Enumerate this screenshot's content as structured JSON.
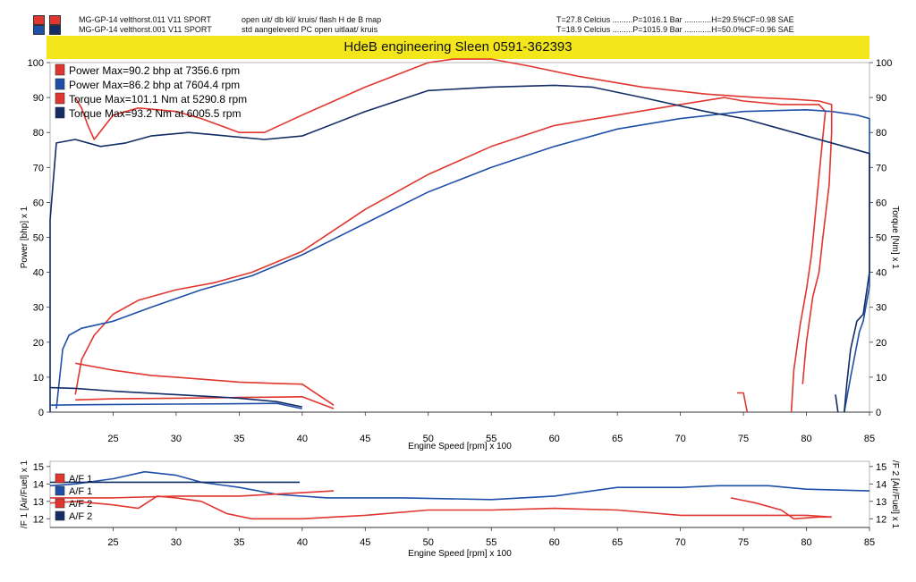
{
  "header": {
    "runs": [
      {
        "name": "MG-GP-14 velthorst.011 V11 SPORT",
        "desc": "open uit/ db kil/ kruis/ flash H de B map",
        "conditions": "T=27.8 Celcius .........P=1016.1 Bar ............H=29.5%CF=0.98 SAE",
        "color": "#d9302b"
      },
      {
        "name": "MG-GP-14 velthorst.001 V11 SPORT",
        "desc": "std aangeleverd PC open uitlaat/ kruis",
        "conditions": "T=18.9 Celcius .........P=1015.9 Bar ............H=50.0%CF=0.96 SAE",
        "color": "#2a5cb0"
      }
    ],
    "banner": "HdeB engineering Sleen 0591-362393"
  },
  "chart_data": [
    {
      "type": "line",
      "xlabel": "Engine Speed [rpm] x 100",
      "ylabel_left": "Power [bhp] x 1",
      "ylabel_right": "Torque [Nm] x 1",
      "xlim": [
        20,
        85
      ],
      "ylim": [
        0,
        100
      ],
      "xticks": [
        25,
        30,
        35,
        40,
        45,
        50,
        55,
        60,
        65,
        70,
        75,
        80,
        85
      ],
      "yticks": [
        0,
        10,
        20,
        30,
        40,
        50,
        60,
        70,
        80,
        90,
        100
      ],
      "legend": [
        {
          "label": "Power  Max=90.2 bhp at 7356.6 rpm",
          "color": "#e0362f"
        },
        {
          "label": "Power  Max=86.2 bhp at 7604.4 rpm",
          "color": "#1e50a8"
        },
        {
          "label": "Torque  Max=101.1 Nm at 5290.8 rpm",
          "color": "#e0362f"
        },
        {
          "label": "Torque  Max=93.2 Nm at 6005.5 rpm",
          "color": "#122c66"
        }
      ],
      "series": [
        {
          "color": "#e0362f",
          "points": [
            [
              22,
              5
            ],
            [
              22.5,
              15
            ],
            [
              23.5,
              22
            ],
            [
              25,
              28
            ],
            [
              27,
              32
            ],
            [
              30,
              35
            ],
            [
              33,
              37
            ],
            [
              36,
              40
            ],
            [
              40,
              46
            ],
            [
              45,
              58
            ],
            [
              50,
              68
            ],
            [
              55,
              76
            ],
            [
              60,
              82
            ],
            [
              65,
              85
            ],
            [
              70,
              88
            ],
            [
              73.5,
              90
            ],
            [
              75,
              89
            ],
            [
              78,
              88
            ],
            [
              80,
              88
            ],
            [
              81,
              88
            ],
            [
              81.5,
              86
            ],
            [
              81.2,
              75
            ],
            [
              80.8,
              60
            ],
            [
              80.4,
              45
            ],
            [
              80,
              35
            ],
            [
              79.5,
              25
            ],
            [
              79,
              12
            ],
            [
              78.8,
              0
            ]
          ]
        },
        {
          "color": "#1e50a8",
          "points": [
            [
              20.5,
              1
            ],
            [
              21,
              18
            ],
            [
              21.5,
              22
            ],
            [
              22.5,
              24
            ],
            [
              25,
              26
            ],
            [
              28,
              30
            ],
            [
              32,
              35
            ],
            [
              36,
              39
            ],
            [
              40,
              45
            ],
            [
              45,
              54
            ],
            [
              50,
              63
            ],
            [
              55,
              70
            ],
            [
              60,
              76
            ],
            [
              65,
              81
            ],
            [
              70,
              84
            ],
            [
              75,
              86
            ],
            [
              80,
              86.5
            ],
            [
              82,
              86
            ],
            [
              84,
              85
            ],
            [
              85,
              84
            ],
            [
              85,
              60
            ],
            [
              85,
              36
            ],
            [
              84.7,
              30
            ],
            [
              84.5,
              26
            ],
            [
              84.2,
              23
            ],
            [
              83.5,
              10
            ],
            [
              83,
              0
            ]
          ]
        },
        {
          "color": "#e0362f",
          "points": [
            [
              22,
              90
            ],
            [
              22.5,
              87
            ],
            [
              23,
              82
            ],
            [
              23.5,
              78
            ],
            [
              25,
              85
            ],
            [
              27,
              87
            ],
            [
              30,
              86
            ],
            [
              32,
              84
            ],
            [
              35,
              80
            ],
            [
              37,
              80
            ],
            [
              40,
              85
            ],
            [
              45,
              93
            ],
            [
              50,
              100
            ],
            [
              52,
              101
            ],
            [
              55,
              101
            ],
            [
              58,
              99
            ],
            [
              62,
              96
            ],
            [
              67,
              93
            ],
            [
              72,
              91
            ],
            [
              76,
              90
            ],
            [
              79,
              89.5
            ],
            [
              81,
              89
            ],
            [
              82,
              88
            ],
            [
              82,
              80
            ],
            [
              81.8,
              65
            ],
            [
              81.3,
              50
            ],
            [
              81,
              40
            ],
            [
              80.5,
              33
            ],
            [
              80,
              20
            ],
            [
              79.7,
              8
            ]
          ]
        },
        {
          "color": "#122c66",
          "points": [
            [
              20,
              0
            ],
            [
              20,
              55
            ],
            [
              20.5,
              77
            ],
            [
              22,
              78
            ],
            [
              24,
              76
            ],
            [
              26,
              77
            ],
            [
              28,
              79
            ],
            [
              31,
              80
            ],
            [
              34,
              79
            ],
            [
              37,
              78
            ],
            [
              40,
              79
            ],
            [
              45,
              86
            ],
            [
              50,
              92
            ],
            [
              55,
              93
            ],
            [
              60,
              93.5
            ],
            [
              63,
              93
            ],
            [
              67,
              90
            ],
            [
              72,
              86
            ],
            [
              75,
              84
            ],
            [
              78,
              81
            ],
            [
              80,
              79
            ],
            [
              83,
              76
            ],
            [
              85,
              74
            ],
            [
              85,
              55
            ],
            [
              85,
              40
            ],
            [
              84.5,
              28
            ],
            [
              84,
              26
            ],
            [
              83.5,
              18
            ],
            [
              83.2,
              8
            ],
            [
              83,
              0
            ]
          ]
        },
        {
          "color": "#e0362f",
          "points": [
            [
              22,
              3.5
            ],
            [
              25,
              3.8
            ],
            [
              30,
              4
            ],
            [
              35,
              4.2
            ],
            [
              38,
              4.3
            ],
            [
              40,
              4.4
            ],
            [
              42.5,
              1
            ]
          ]
        },
        {
          "color": "#e0362f",
          "points": [
            [
              22,
              14
            ],
            [
              25,
              12
            ],
            [
              28,
              10.5
            ],
            [
              30,
              10
            ],
            [
              35,
              8.6
            ],
            [
              38,
              8.2
            ],
            [
              40,
              8
            ],
            [
              42.5,
              2
            ]
          ]
        },
        {
          "color": "#1e50a8",
          "points": [
            [
              20,
              2
            ],
            [
              22,
              2.1
            ],
            [
              25,
              2.2
            ],
            [
              30,
              2.3
            ],
            [
              35,
              2.4
            ],
            [
              38,
              2.5
            ],
            [
              40,
              1
            ]
          ]
        },
        {
          "color": "#122c66",
          "points": [
            [
              20,
              7
            ],
            [
              22,
              6.8
            ],
            [
              25,
              6
            ],
            [
              30,
              5
            ],
            [
              35,
              4
            ],
            [
              38,
              3
            ],
            [
              40,
              1.5
            ]
          ]
        },
        {
          "color": "#e0362f",
          "points": [
            [
              74.5,
              5.5
            ],
            [
              75,
              5.5
            ],
            [
              75.3,
              0
            ]
          ]
        },
        {
          "color": "#122c66",
          "points": [
            [
              82.3,
              5
            ],
            [
              82.5,
              0
            ]
          ]
        }
      ]
    },
    {
      "type": "line",
      "xlabel": "Engine Speed [rpm] x 100",
      "ylabel_left": "/F 1 [Air/Fuel] x 1",
      "ylabel_right": "/F 2 [Air/Fuel] x 1",
      "xlim": [
        20,
        85
      ],
      "ylim": [
        11.5,
        15.3
      ],
      "xticks": [
        25,
        30,
        35,
        40,
        45,
        50,
        55,
        60,
        65,
        70,
        75,
        80,
        85
      ],
      "yticks": [
        12,
        13,
        14,
        15
      ],
      "legend": [
        {
          "label": "A/F 1",
          "color": "#e0362f"
        },
        {
          "label": "A/F 1",
          "color": "#1e50a8"
        },
        {
          "label": "A/F 2",
          "color": "#e0362f"
        },
        {
          "label": "A/F 2",
          "color": "#122c66"
        }
      ],
      "series": [
        {
          "color": "#1e50a8",
          "points": [
            [
              20,
              13.9
            ],
            [
              22,
              14
            ],
            [
              25,
              14.3
            ],
            [
              27.5,
              14.7
            ],
            [
              30,
              14.5
            ],
            [
              32,
              14.1
            ],
            [
              35,
              13.8
            ],
            [
              38,
              13.4
            ],
            [
              42,
              13.2
            ],
            [
              48,
              13.2
            ],
            [
              55,
              13.1
            ],
            [
              60,
              13.3
            ],
            [
              65,
              13.8
            ],
            [
              70,
              13.8
            ],
            [
              73,
              13.9
            ],
            [
              77,
              13.9
            ],
            [
              80,
              13.7
            ],
            [
              85,
              13.6
            ]
          ]
        },
        {
          "color": "#e0362f",
          "points": [
            [
              20,
              12.9
            ],
            [
              22,
              13
            ],
            [
              25,
              12.8
            ],
            [
              27,
              12.6
            ],
            [
              28.5,
              13.3
            ],
            [
              30,
              13.2
            ],
            [
              32,
              13
            ],
            [
              34,
              12.3
            ],
            [
              36,
              12
            ],
            [
              40,
              12
            ],
            [
              45,
              12.2
            ],
            [
              50,
              12.5
            ],
            [
              55,
              12.5
            ],
            [
              60,
              12.6
            ],
            [
              65,
              12.5
            ],
            [
              70,
              12.2
            ],
            [
              75,
              12.2
            ],
            [
              80,
              12.2
            ],
            [
              82,
              12.1
            ]
          ]
        },
        {
          "color": "#e0362f",
          "points": [
            [
              20,
              13.2
            ],
            [
              25,
              13.2
            ],
            [
              30,
              13.3
            ],
            [
              35,
              13.3
            ],
            [
              40,
              13.5
            ],
            [
              42.5,
              13.6
            ]
          ]
        },
        {
          "color": "#122c66",
          "points": [
            [
              20,
              14.1
            ],
            [
              25,
              14.1
            ],
            [
              30,
              14.1
            ],
            [
              35,
              14.1
            ],
            [
              39.8,
              14.1
            ]
          ]
        },
        {
          "color": "#e0362f",
          "points": [
            [
              74,
              13.2
            ],
            [
              76,
              12.9
            ],
            [
              78,
              12.5
            ],
            [
              79,
              12
            ],
            [
              81,
              12.1
            ],
            [
              82,
              12.1
            ]
          ]
        }
      ]
    }
  ]
}
